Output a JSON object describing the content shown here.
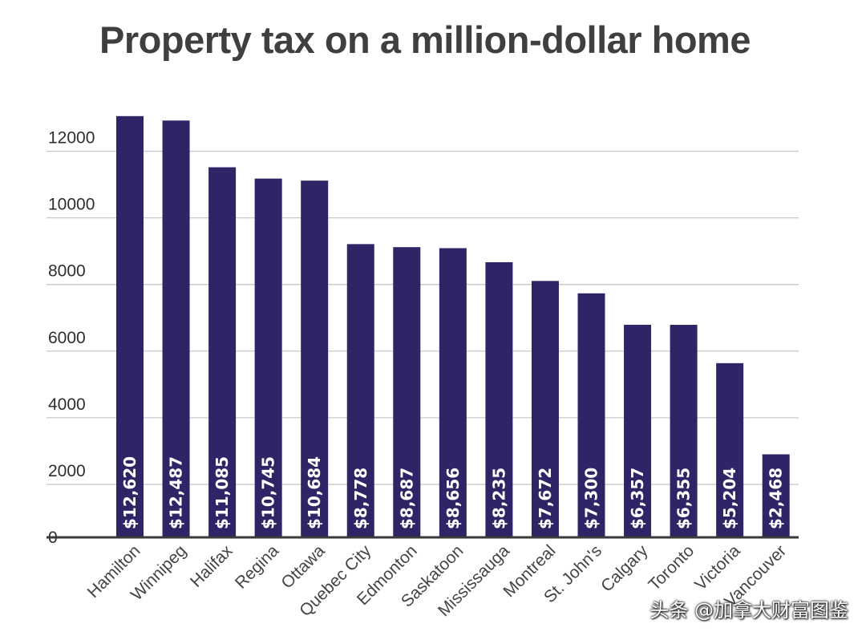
{
  "chart_data": {
    "type": "bar",
    "title": "Property tax on a million-dollar home",
    "xlabel": "",
    "ylabel": "",
    "ylim": [
      0,
      13000
    ],
    "yticks": [
      0,
      2000,
      4000,
      6000,
      8000,
      10000,
      12000
    ],
    "ytick_labels": [
      "0",
      "2000",
      "4000",
      "6000",
      "8000",
      "10000",
      "12000"
    ],
    "grid": true,
    "bar_color": "#2e2466",
    "categories": [
      "Hamilton",
      "Winnipeg",
      "Halifax",
      "Regina",
      "Ottawa",
      "Quebec City",
      "Edmonton",
      "Saskatoon",
      "Mississauga",
      "Montreal",
      "St. John's",
      "Calgary",
      "Toronto",
      "Victoria",
      "Vancouver"
    ],
    "values": [
      12620,
      12487,
      11085,
      10745,
      10684,
      8778,
      8687,
      8656,
      8235,
      7672,
      7300,
      6357,
      6355,
      5204,
      2468
    ],
    "data_labels": [
      "$12,620",
      "$12,487",
      "$11,085",
      "$10,745",
      "$10,684",
      "$8,778",
      "$8,687",
      "$8,656",
      "$8,235",
      "$7,672",
      "$7,300",
      "$6,357",
      "$6,355",
      "$5,204",
      "$2,468"
    ]
  },
  "watermark": "头条 @加拿大财富图鉴"
}
